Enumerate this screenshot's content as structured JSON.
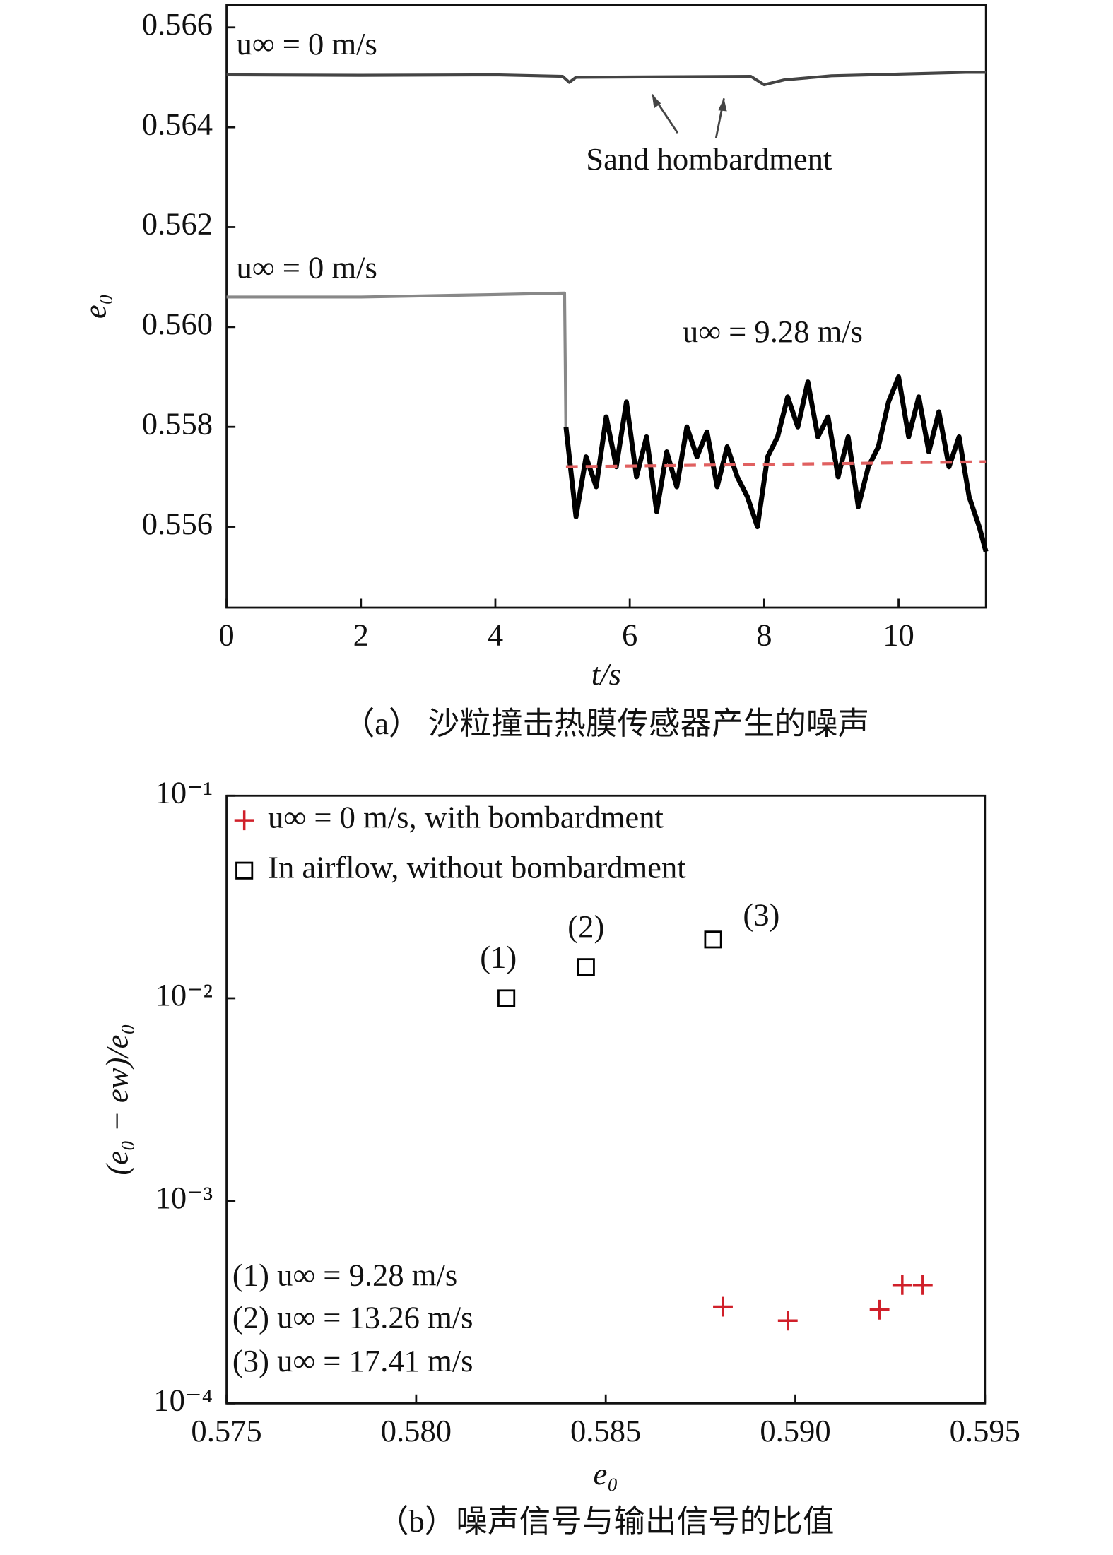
{
  "chart_data": [
    {
      "type": "line",
      "x_label": "t/s",
      "y_label": "e₀",
      "caption": "（a） 沙粒撞击热膜传感器产生的噪声",
      "xlim": [
        0,
        11.3
      ],
      "xticks": [
        0,
        2,
        4,
        6,
        8,
        10
      ],
      "ylim": [
        0.55438,
        0.56645
      ],
      "yticks": [
        0.556,
        0.558,
        {
          "value": 0.56,
          "label": "0.560"
        },
        0.562,
        0.564,
        0.566
      ],
      "annotations": [
        "u∞ = 0 m/s",
        "Sand hombardment",
        "u∞ = 0 m/s",
        "u∞ = 9.28 m/s"
      ],
      "series": [
        {
          "color": "#444444",
          "x": [
            0,
            2,
            4,
            5,
            5.1,
            5.2,
            7.8,
            8.0,
            8.3,
            9,
            11,
            11.3
          ],
          "values": [
            0.56505,
            0.56504,
            0.56505,
            0.56502,
            0.5649,
            0.565,
            0.56502,
            0.56485,
            0.56495,
            0.56503,
            0.5651,
            0.5651
          ]
        },
        {
          "color": "#888888",
          "x": [
            0,
            2,
            4,
            5.03,
            5.05
          ],
          "values": [
            0.5606,
            0.5606,
            0.56065,
            0.56068,
            0.5578
          ]
        },
        {
          "color": "#000000",
          "x": [
            5.05,
            5.2,
            5.35,
            5.5,
            5.65,
            5.8,
            5.95,
            6.1,
            6.25,
            6.4,
            6.55,
            6.7,
            6.85,
            7.0,
            7.15,
            7.3,
            7.45,
            7.6,
            7.75,
            7.9,
            8.05,
            8.2,
            8.35,
            8.5,
            8.65,
            8.8,
            8.95,
            9.1,
            9.25,
            9.4,
            9.55,
            9.7,
            9.85,
            10.0,
            10.15,
            10.3,
            10.45,
            10.6,
            10.75,
            10.9,
            11.05,
            11.2,
            11.3
          ],
          "values": [
            0.558,
            0.5562,
            0.5574,
            0.5568,
            0.5582,
            0.5572,
            0.5585,
            0.557,
            0.5578,
            0.5563,
            0.5575,
            0.5568,
            0.558,
            0.5574,
            0.5579,
            0.5568,
            0.5576,
            0.557,
            0.5566,
            0.556,
            0.5574,
            0.5578,
            0.5586,
            0.558,
            0.5589,
            0.5578,
            0.5582,
            0.557,
            0.5578,
            0.5564,
            0.5572,
            0.5576,
            0.5585,
            0.559,
            0.5578,
            0.5586,
            0.5575,
            0.5583,
            0.5572,
            0.5578,
            0.5566,
            0.556,
            0.5555
          ]
        },
        {
          "color": "#e06060",
          "dashed": true,
          "x": [
            5.05,
            11.3
          ],
          "values": [
            0.5572,
            0.5573
          ]
        }
      ]
    },
    {
      "type": "scatter",
      "x_label": "e₀",
      "y_label": "(e₀ − ew)/e₀",
      "caption": "（b）噪声信号与输出信号的比值",
      "log_y": true,
      "legend": "upper left",
      "xlim": [
        0.575,
        0.595
      ],
      "xticks": [
        0.575,
        {
          "value": 0.58,
          "label": "0.580"
        },
        0.585,
        {
          "value": 0.59,
          "label": "0.590"
        },
        0.595
      ],
      "ylim": [
        0.0001,
        0.1
      ],
      "yticks": [
        {
          "value": 0.0001,
          "label": "10⁻⁴"
        },
        {
          "value": 0.001,
          "label": "10⁻³"
        },
        {
          "value": 0.01,
          "label": "10⁻²"
        },
        {
          "value": 0.1,
          "label": "10⁻¹"
        }
      ],
      "annotations": [
        "(1)",
        "(2)",
        "(3)",
        "(1) u∞ = 9.28 m/s",
        "(2) u∞ = 13.26 m/s",
        "(3) u∞ = 17.41 m/s"
      ],
      "series": [
        {
          "name": "u∞ = 0 m/s, with bombardment",
          "color": "#d0202a",
          "marker": "plus",
          "x": [
            0.58809,
            0.5898,
            0.59222,
            0.59282,
            0.59336
          ],
          "values": [
            0.0003,
            0.000256,
            0.00029,
            0.000384,
            0.000384
          ]
        },
        {
          "name": "In airflow, without bombardment",
          "color": "#000000",
          "marker": "square",
          "x": [
            0.58238,
            0.58448,
            0.58783
          ],
          "values": [
            0.01,
            0.01426,
            0.0195
          ]
        }
      ]
    }
  ]
}
